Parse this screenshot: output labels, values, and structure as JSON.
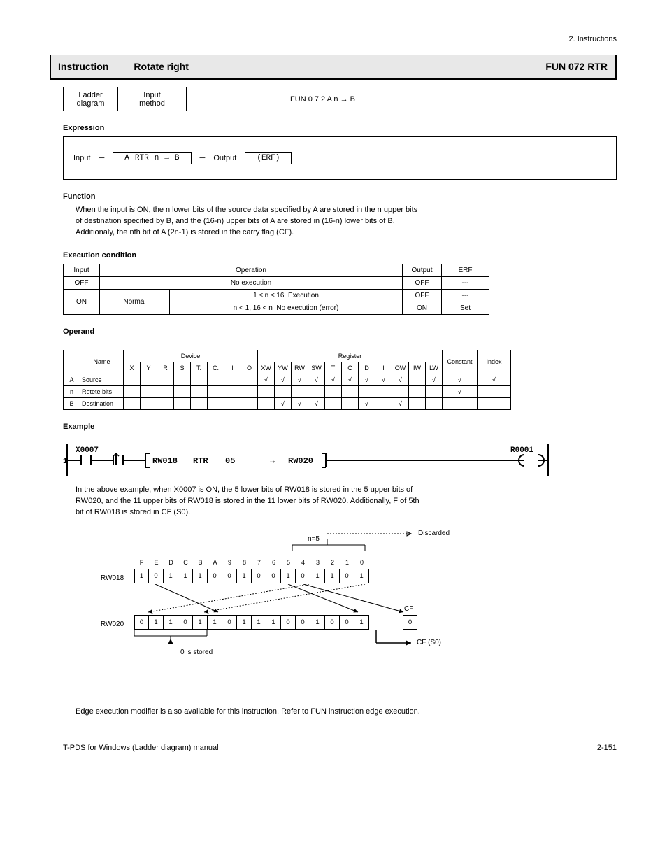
{
  "page_header": "2. Instructions",
  "title_bar": {
    "left1": "Instruction",
    "left2": "Rotate right",
    "right": "FUN 072   RTR"
  },
  "fun_table": {
    "c1_line1": "Ladder",
    "c1_line2": "diagram",
    "c2_line1": "Input",
    "c2_line2": "method",
    "c3": "FUN 0 7 2 A n → B"
  },
  "sections": {
    "expression": "Expression",
    "function": "Function",
    "exec_cond": "Execution condition",
    "operand": "Operand",
    "example": "Example"
  },
  "expression": {
    "input_label": "Input",
    "a": "A",
    "op": "RTR",
    "n": "n",
    "arrow": "→",
    "b": "B",
    "output_label": "Output",
    "output_value": "(ERF)"
  },
  "function_lines": [
    "When the input is ON, the n lower bits of the source data specified by A are stored in the n upper bits",
    "of destination specified by B, and the (16-n) upper bits of A are stored in (16-n) lower bits of B.",
    "Additionaly, the nth bit of A (2n-1) is stored in the carry flag (CF)."
  ],
  "exec_table": {
    "r1": {
      "c1": "Input",
      "c2": "Operation",
      "c3": "Output",
      "c4": "ERF"
    },
    "r2": {
      "c1": "OFF",
      "c2": "No execution",
      "c3": "OFF",
      "c4": "---"
    },
    "r3": {
      "c1_rowspan_label": "ON",
      "c2a": "Normal",
      "c2b": "Execution",
      "c3a": "OFF",
      "c4a": "---",
      "c2b2": "No execution (error)",
      "c3b": "ON",
      "c4b": "Set"
    },
    "sublabels": {
      "inrange": "1 ≤ n ≤ 16",
      "outrange": "n < 1, 16 < n"
    }
  },
  "operand_table": {
    "header_left": "Name",
    "header_dev": "Device",
    "header_reg": "Register",
    "header_const": "Constant",
    "header_idx": "Index",
    "devices": [
      "X",
      "Y",
      "R",
      "S",
      "T.",
      "C.",
      "I",
      "O"
    ],
    "registers": [
      "XW",
      "YW",
      "RW",
      "SW",
      "T",
      "C",
      "D",
      "I",
      "OW",
      "IW",
      "LW"
    ],
    "rows": [
      {
        "label": "A",
        "name": "Source",
        "vals": [
          "",
          "",
          "",
          "",
          "",
          "",
          "",
          "",
          "√",
          "√",
          "√",
          "√",
          "√",
          "√",
          "√",
          "√",
          "√",
          "",
          "√",
          "√",
          "√"
        ]
      },
      {
        "label": "n",
        "name": "Rotete bits",
        "vals": [
          "",
          "",
          "",
          "",
          "",
          "",
          "",
          "",
          "",
          "",
          "",
          "",
          "",
          "",
          "",
          "",
          "",
          "",
          "",
          "√",
          ""
        ]
      },
      {
        "label": "B",
        "name": "Destination",
        "vals": [
          "",
          "",
          "",
          "",
          "",
          "",
          "",
          "",
          "",
          "√",
          "√",
          "√",
          "",
          "",
          "√",
          "",
          "√",
          "",
          "",
          "",
          ""
        ]
      }
    ]
  },
  "ladder": {
    "rung_no": "1",
    "contact": "X0007",
    "a": "RW018",
    "op": "RTR",
    "n": "05",
    "arrow": "→",
    "b": "RW020",
    "coil": "R0001"
  },
  "example_text": [
    "In the above example, when X0007 is ON, the 5 lower bits of RW018 is stored in the 5 upper bits of",
    "RW020, and the 11 upper bits of RW018 is stored in the 11 lower bits of RW020.  Additionally, F of 5th",
    "bit of  RW018 is stored in CF (S0)."
  ],
  "diagram": {
    "n_label": "n=5",
    "discarded": "Discarded",
    "bit_labels_top": [
      "F",
      "E",
      "D",
      "C",
      "B",
      "A",
      "9",
      "8",
      "7",
      "6",
      "5",
      "4",
      "3",
      "2",
      "1",
      "0"
    ],
    "rw018_label": "RW018",
    "rw018_bits": [
      "1",
      "0",
      "1",
      "1",
      "1",
      "0",
      "0",
      "1",
      "0",
      "0",
      "1",
      "0",
      "1",
      "1",
      "0",
      "1"
    ],
    "rw020_label": "RW020",
    "rw020_bits": [
      "0",
      "1",
      "1",
      "0",
      "1",
      "1",
      "0",
      "1",
      "1",
      "1",
      "0",
      "0",
      "1",
      "0",
      "0",
      "1"
    ],
    "cf_label": "CF",
    "cf_value": "0",
    "zero_note": "0 is stored",
    "cf_arrow_label": "CF (S0)"
  },
  "edge_note": "Edge execution modifier is also available for this instruction.  Refer to FUN instruction edge execution.",
  "footer": {
    "manual": "T-PDS for Windows (Ladder diagram) manual",
    "page": "2-151"
  },
  "colors": {
    "bg": "#ffffff",
    "titlebar_bg": "#e8e8e8",
    "border": "#000000",
    "text": "#000000"
  }
}
